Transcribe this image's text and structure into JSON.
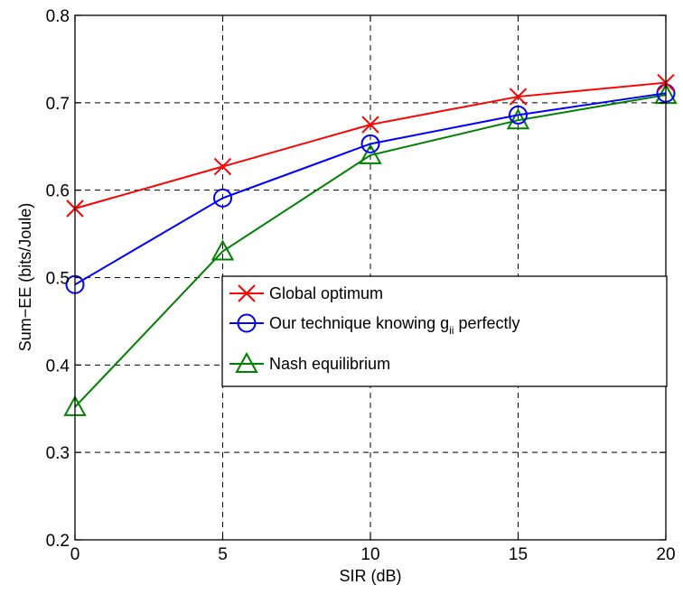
{
  "chart_data": {
    "type": "line",
    "xlabel": "SIR (dB)",
    "ylabel": "Sum−EE (bits/Joule)",
    "xlim": [
      0,
      20
    ],
    "ylim": [
      0.2,
      0.8
    ],
    "x_ticks": [
      0,
      5,
      10,
      15,
      20
    ],
    "x_tick_labels": [
      "0",
      "5",
      "10",
      "15",
      "20"
    ],
    "y_ticks": [
      0.2,
      0.3,
      0.4,
      0.5,
      0.6,
      0.7,
      0.8
    ],
    "y_tick_labels": [
      "0.2",
      "0.3",
      "0.4",
      "0.5",
      "0.6",
      "0.7",
      "0.8"
    ],
    "grid": true,
    "legend_position": "center-right",
    "x": [
      0,
      5,
      10,
      15,
      20
    ],
    "series": [
      {
        "name": "Global optimum",
        "values": [
          0.579,
          0.627,
          0.675,
          0.707,
          0.723
        ],
        "color": "#ff0000",
        "marker": "x-mark"
      },
      {
        "name": "Our technique knowing g",
        "name_subscript": "ii",
        "name_suffix": " perfectly",
        "values": [
          0.492,
          0.591,
          0.653,
          0.686,
          0.711
        ],
        "color": "#0000ff",
        "marker": "circle"
      },
      {
        "name": "Nash equilibrium",
        "values": [
          0.352,
          0.53,
          0.64,
          0.68,
          0.709
        ],
        "color": "#008000",
        "marker": "triangle"
      }
    ]
  }
}
